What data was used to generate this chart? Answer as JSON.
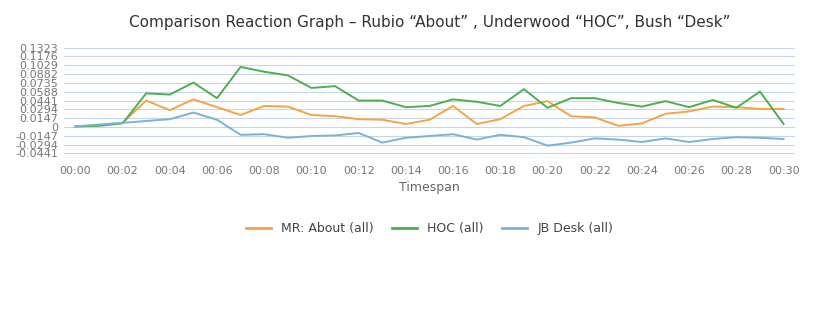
{
  "title": "Comparison Reaction Graph – Rubio “About” , Underwood “HOC”, Bush “Desk”",
  "xlabel": "Timespan",
  "background_color": "#ffffff",
  "grid_color": "#c8d4e8",
  "x_labels": [
    "00:00",
    "00:02",
    "00:04",
    "00:06",
    "00:08",
    "00:10",
    "00:12",
    "00:14",
    "00:16",
    "00:18",
    "00:20",
    "00:22",
    "00:24",
    "00:26",
    "00:28",
    "00:30"
  ],
  "ytick_vals": [
    -0.0441,
    -0.0294,
    -0.0147,
    0.0,
    0.0147,
    0.0294,
    0.0441,
    0.0588,
    0.0735,
    0.0882,
    0.1029,
    0.1176,
    0.1323
  ],
  "ytick_labels": [
    "-0.0441",
    "-0.0294",
    "-0.0147",
    "0",
    "0.0147",
    "0.0294",
    "0.0441",
    "0.0588",
    "0.0735",
    "0.0882",
    "0.1029",
    "0.1176",
    "0.1323"
  ],
  "ylim": [
    -0.055,
    0.148
  ],
  "orange_color": "#F4A447",
  "green_color": "#4CAF50",
  "blue_color": "#7AB3D8",
  "mr_about": [
    0.001,
    0.003,
    0.007,
    0.044,
    0.028,
    0.046,
    0.033,
    0.02,
    0.035,
    0.034,
    0.02,
    0.018,
    0.013,
    0.012,
    0.005,
    0.012,
    0.035,
    0.005,
    0.013,
    0.035,
    0.043,
    0.018,
    0.016,
    0.002,
    0.006,
    0.022,
    0.026,
    0.034,
    0.033,
    0.03,
    0.03
  ],
  "hoc_all": [
    0.001,
    0.002,
    0.006,
    0.056,
    0.054,
    0.074,
    0.048,
    0.1,
    0.092,
    0.086,
    0.065,
    0.068,
    0.044,
    0.044,
    0.033,
    0.035,
    0.046,
    0.042,
    0.035,
    0.063,
    0.032,
    0.048,
    0.048,
    0.04,
    0.034,
    0.043,
    0.033,
    0.045,
    0.032,
    0.059,
    0.005
  ],
  "jb_desk": [
    0.001,
    0.004,
    0.007,
    0.01,
    0.013,
    0.024,
    0.012,
    -0.013,
    -0.012,
    -0.018,
    -0.015,
    -0.014,
    -0.01,
    -0.026,
    -0.018,
    -0.015,
    -0.012,
    -0.021,
    -0.013,
    -0.017,
    -0.031,
    -0.026,
    -0.019,
    -0.021,
    -0.025,
    -0.019,
    -0.025,
    -0.02,
    -0.017,
    -0.018,
    -0.02
  ],
  "legend_labels": [
    "MR: About (all)",
    "HOC (all)",
    "JB Desk (all)"
  ]
}
